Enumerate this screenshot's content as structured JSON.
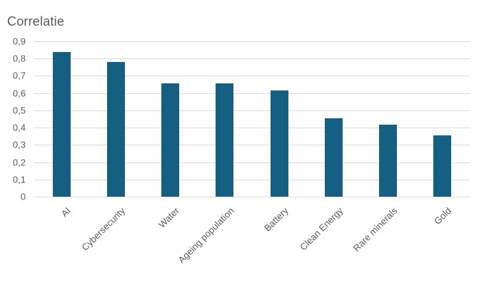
{
  "colors": {
    "bar": "#156082",
    "gridline": "#D9D9D9",
    "title_text": "#595959",
    "axis_text": "#595959",
    "background": "#FFFFFF"
  },
  "chart_data": {
    "type": "bar",
    "title": "Correlatie",
    "categories": [
      "AI",
      "Cybersecurity",
      "Water",
      "Ageing population",
      "Battery",
      "Clean Energy",
      "Rare minerals",
      "Gold"
    ],
    "values": [
      0.84,
      0.78,
      0.655,
      0.655,
      0.615,
      0.455,
      0.415,
      0.355
    ],
    "xlabel": "",
    "ylabel": "",
    "ylim": [
      0,
      0.9
    ],
    "ytick_step": 0.1,
    "ytick_labels": [
      "0",
      "0,1",
      "0,2",
      "0,3",
      "0,4",
      "0,5",
      "0,6",
      "0,7",
      "0,8",
      "0,9"
    ],
    "decimal_separator": ",",
    "grid": true,
    "legend_position": "none",
    "category_label_rotation_deg": -45
  }
}
